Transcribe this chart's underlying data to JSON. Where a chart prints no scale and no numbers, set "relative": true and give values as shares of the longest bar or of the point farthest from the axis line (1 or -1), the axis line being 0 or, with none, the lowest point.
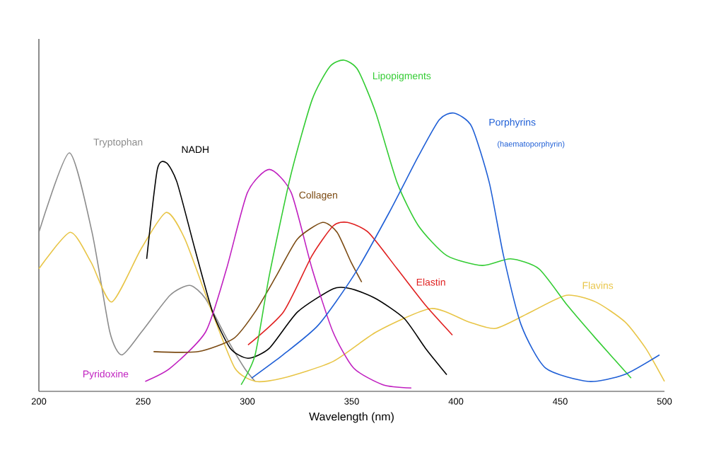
{
  "chart_data": {
    "type": "line",
    "relative": true,
    "xlabel": "Wavelength (nm)",
    "xlim": [
      200,
      500
    ],
    "xticks": [
      200,
      250,
      300,
      350,
      400,
      450,
      500
    ],
    "legend": false,
    "grid": false,
    "marker": "none",
    "line_style": "solid",
    "annotations": [
      "(haematoporphyrin)"
    ],
    "series": [
      {
        "name": "Tryptophan",
        "color": "#8c8c8c",
        "x": [
          200,
          214.6,
          225.5,
          234,
          239.8,
          249.3,
          262.9,
          272.4,
          279.9,
          290.1,
          298.6,
          303.7
        ],
        "values": [
          0.48,
          0.72,
          0.48,
          0.18,
          0.11,
          0.18,
          0.29,
          0.32,
          0.28,
          0.16,
          0.07,
          0.03
        ]
      },
      {
        "name": "Flavins",
        "color": "#e8c547",
        "x": [
          200,
          215,
          225,
          235,
          249,
          261,
          270,
          283,
          294,
          304,
          317,
          341,
          362,
          388,
          406,
          419,
          436,
          453,
          467,
          481,
          491,
          500
        ],
        "values": [
          0.37,
          0.48,
          0.39,
          0.27,
          0.43,
          0.54,
          0.46,
          0.24,
          0.07,
          0.03,
          0.04,
          0.09,
          0.18,
          0.25,
          0.21,
          0.19,
          0.24,
          0.29,
          0.27,
          0.21,
          0.13,
          0.03
        ]
      },
      {
        "name": "NADH",
        "color": "#000000",
        "x": [
          251.7,
          256.8,
          261.2,
          266.3,
          274.8,
          283.3,
          291.8,
          300.3,
          310.5,
          324.1,
          341.2,
          349.7,
          361.6,
          375.2,
          385.4,
          395.6
        ],
        "values": [
          0.4,
          0.67,
          0.69,
          0.63,
          0.43,
          0.24,
          0.13,
          0.1,
          0.13,
          0.24,
          0.31,
          0.31,
          0.28,
          0.22,
          0.13,
          0.05
        ]
      },
      {
        "name": "Pyridoxine",
        "color": "#c020c0",
        "x": [
          251,
          263,
          280,
          290,
          300,
          310.5,
          321,
          331,
          341,
          351,
          365,
          378.6
        ],
        "values": [
          0.03,
          0.07,
          0.18,
          0.37,
          0.6,
          0.67,
          0.6,
          0.37,
          0.18,
          0.07,
          0.02,
          0.01
        ]
      },
      {
        "name": "Collagen",
        "color": "#7b4a12",
        "x": [
          255,
          276.5,
          293.5,
          303.7,
          314,
          324,
          336,
          343,
          349.7,
          354.8
        ],
        "values": [
          0.12,
          0.12,
          0.16,
          0.24,
          0.35,
          0.46,
          0.51,
          0.48,
          0.39,
          0.33
        ]
      },
      {
        "name": "Elastin",
        "color": "#e02020",
        "x": [
          300.3,
          317.3,
          331,
          341.2,
          348,
          358,
          371.8,
          385.4,
          398.3
        ],
        "values": [
          0.14,
          0.24,
          0.41,
          0.5,
          0.51,
          0.48,
          0.37,
          0.26,
          0.17
        ]
      },
      {
        "name": "Lipopigments",
        "color": "#33cc33",
        "x": [
          297,
          303.7,
          310.5,
          320.7,
          331,
          339.5,
          346.3,
          353,
          361.6,
          371.8,
          382,
          395.6,
          412.6,
          426.2,
          439.8,
          453.4,
          467,
          484
        ],
        "values": [
          0.02,
          0.11,
          0.35,
          0.65,
          0.88,
          0.98,
          1,
          0.97,
          0.84,
          0.63,
          0.5,
          0.41,
          0.38,
          0.4,
          0.37,
          0.26,
          0.16,
          0.04
        ]
      },
      {
        "name": "Porphyrins",
        "color": "#1f5fd6",
        "x": [
          302,
          317,
          334,
          351,
          368,
          382,
          392,
          399,
          407.5,
          416,
          422.8,
          431.3,
          443,
          463.6,
          480.6,
          497.6
        ],
        "values": [
          0.04,
          0.11,
          0.2,
          0.35,
          0.54,
          0.71,
          0.82,
          0.84,
          0.8,
          0.63,
          0.41,
          0.2,
          0.07,
          0.03,
          0.05,
          0.11
        ]
      }
    ]
  }
}
